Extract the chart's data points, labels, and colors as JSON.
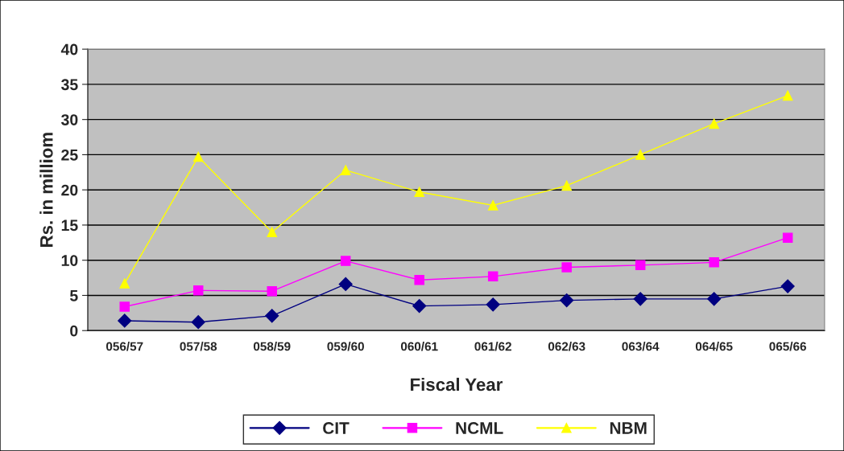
{
  "chart_data": {
    "type": "line",
    "xlabel": "Fiscal Year",
    "ylabel": "Rs. in milliom",
    "categories": [
      "056/57",
      "057/58",
      "058/59",
      "059/60",
      "060/61",
      "061/62",
      "062/63",
      "063/64",
      "064/65",
      "065/66"
    ],
    "series": [
      {
        "name": "CIT",
        "color": "#000080",
        "marker": "diamond",
        "values": [
          1.4,
          1.2,
          2.1,
          6.6,
          3.5,
          3.7,
          4.3,
          4.5,
          4.5,
          6.3
        ]
      },
      {
        "name": "NCML",
        "color": "#ff00ff",
        "marker": "square",
        "values": [
          3.4,
          5.7,
          5.6,
          9.9,
          7.2,
          7.7,
          9.0,
          9.3,
          9.7,
          13.2
        ]
      },
      {
        "name": "NBM",
        "color": "#ffff00",
        "marker": "triangle",
        "values": [
          6.7,
          24.7,
          14.0,
          22.8,
          19.7,
          17.8,
          20.6,
          25.0,
          29.4,
          33.4
        ]
      }
    ],
    "ylim": [
      0,
      40
    ],
    "yticks": [
      0,
      5,
      10,
      15,
      20,
      25,
      30,
      35,
      40
    ],
    "grid": "y",
    "legend": "bottom",
    "line_style": "solid"
  }
}
